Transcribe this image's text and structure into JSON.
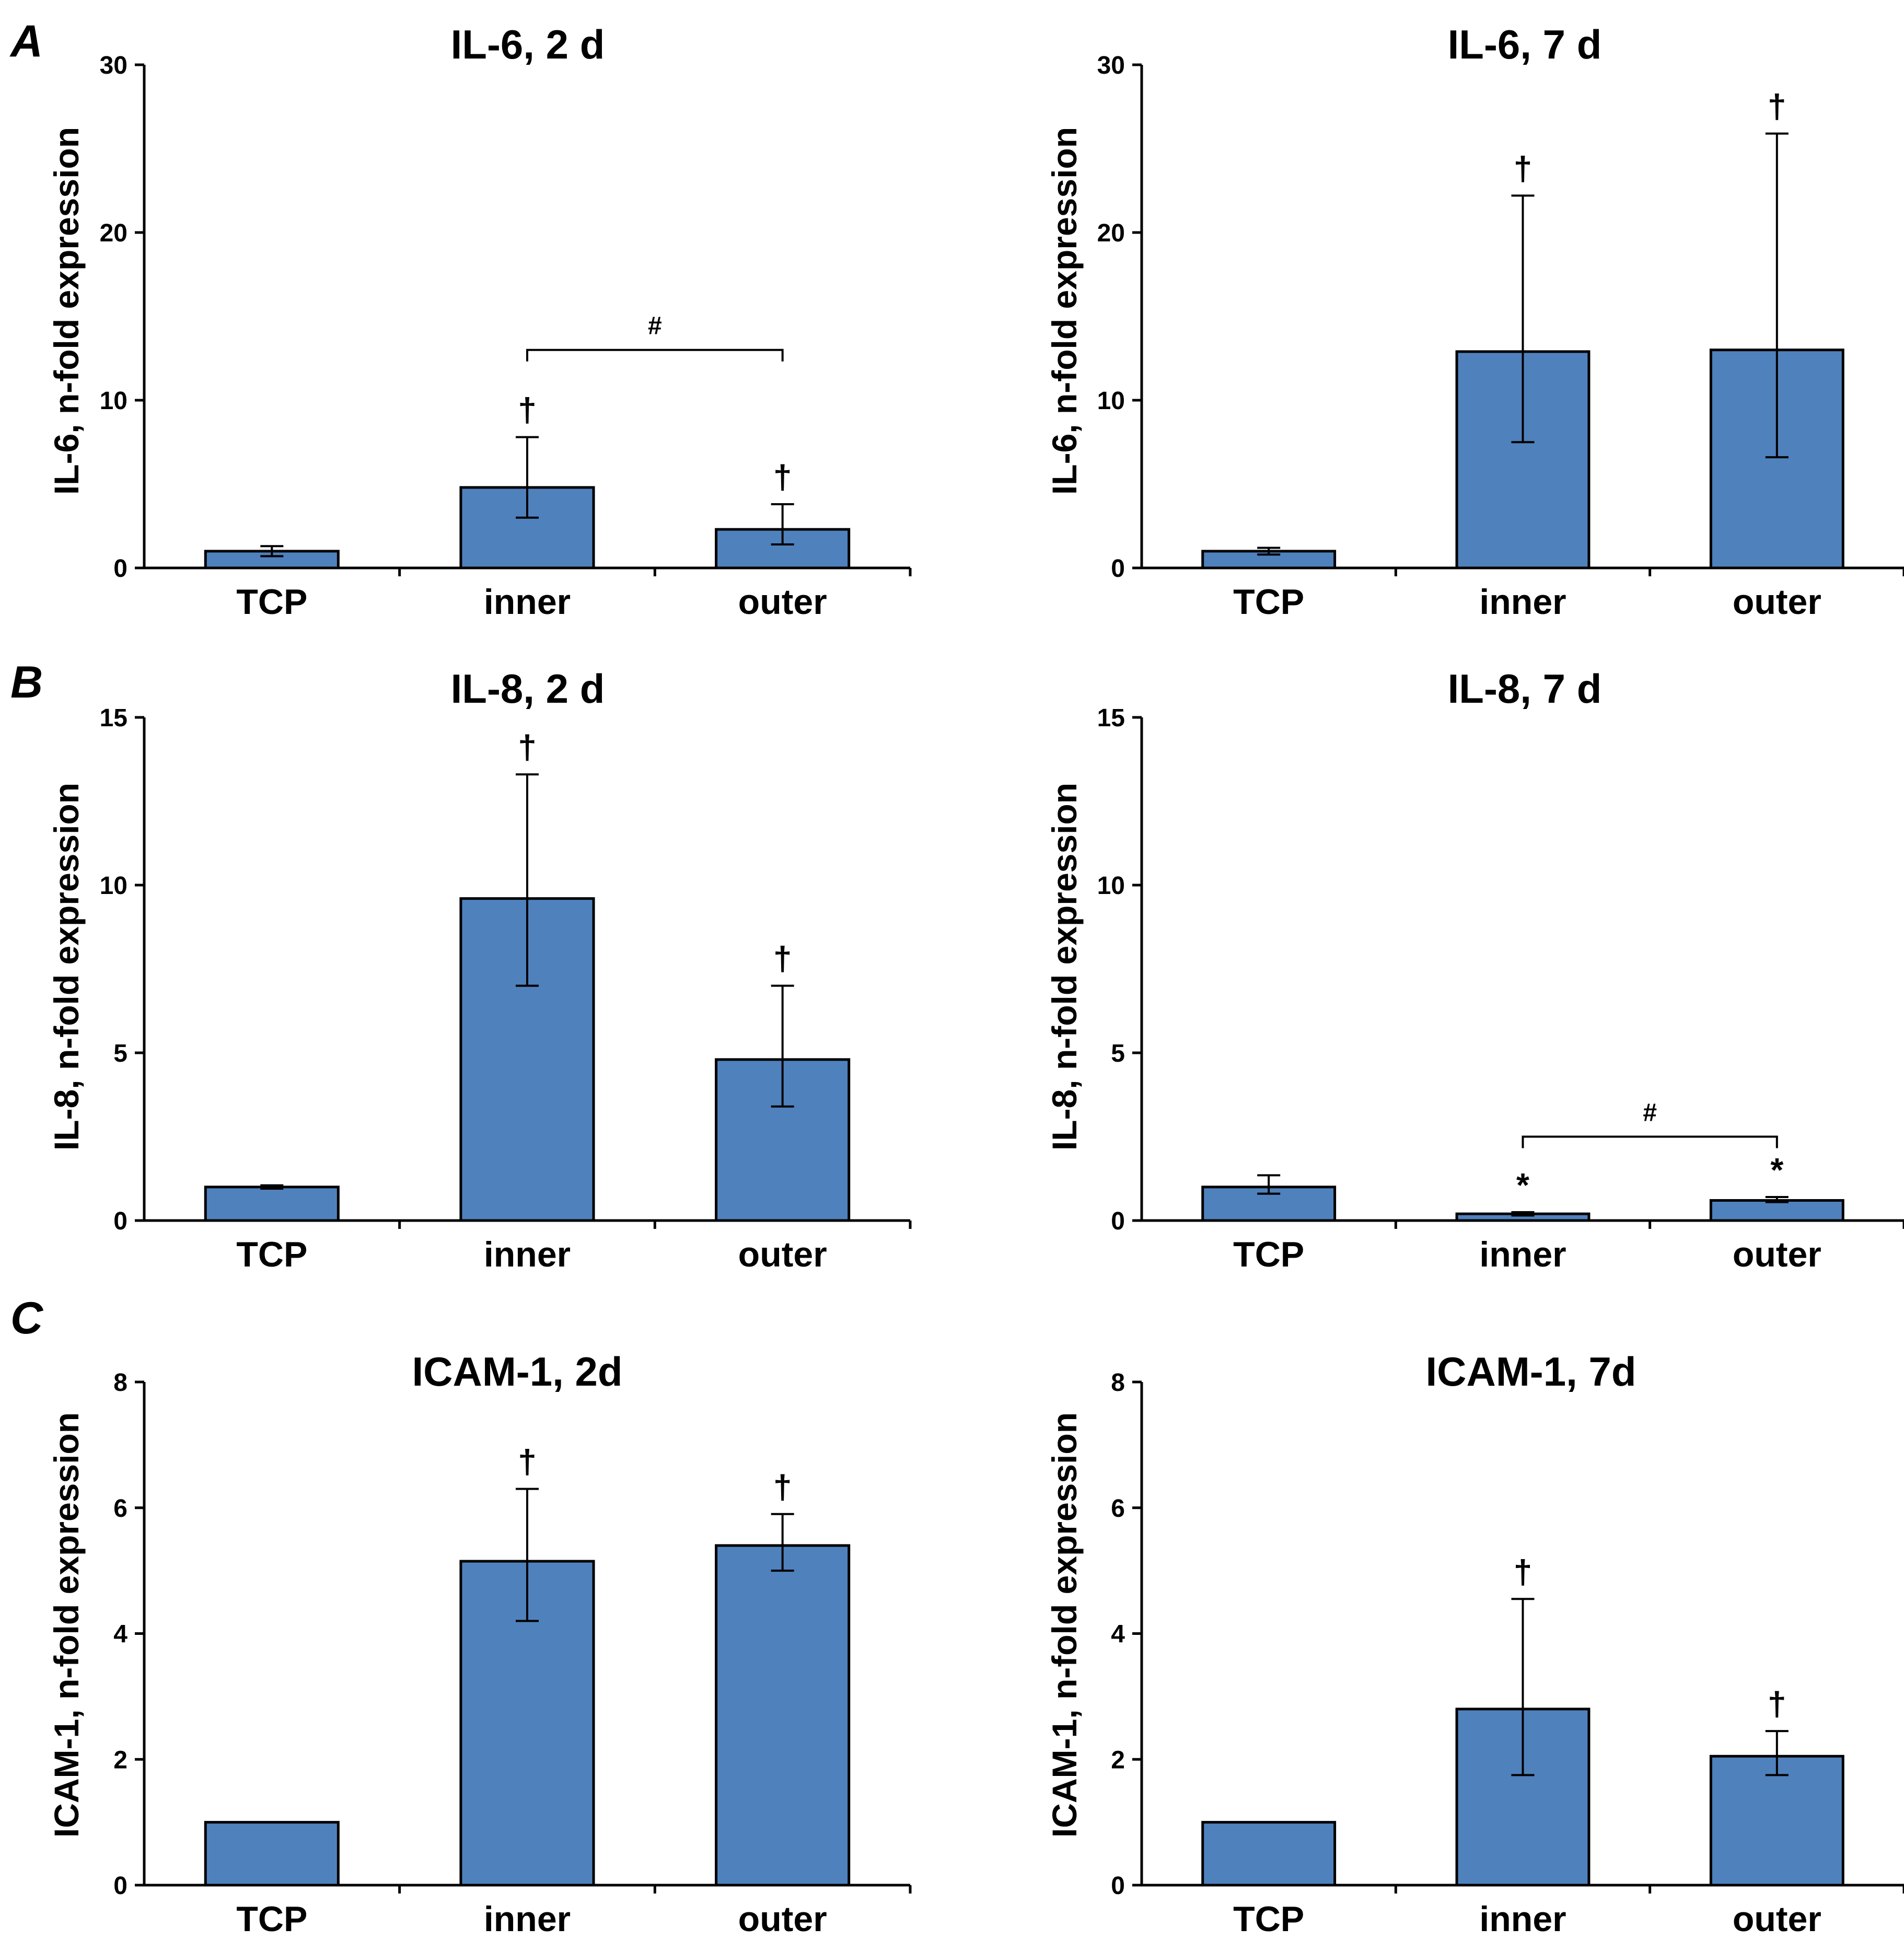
{
  "figure": {
    "panel_letters": [
      "A",
      "B",
      "C"
    ]
  },
  "colors": {
    "bar": "#4f81bd",
    "bar_stroke": "#000000",
    "axis": "#000000",
    "text": "#000000"
  },
  "chart_data": [
    {
      "id": "il6-2d",
      "panel": "A",
      "type": "bar",
      "title": "IL-6, 2 d",
      "ylabel": "IL-6, n-fold expression",
      "xlabel": "",
      "categories": [
        "TCP",
        "inner",
        "outer"
      ],
      "values": [
        1.0,
        4.8,
        2.3
      ],
      "error_low": [
        0.7,
        3.0,
        1.4
      ],
      "error_high": [
        1.3,
        7.8,
        3.8
      ],
      "markers": [
        "",
        "†",
        "†"
      ],
      "bracket": {
        "from": 1,
        "to": 2,
        "label": "#",
        "y": 13.0
      },
      "ylim": [
        0,
        30
      ],
      "yticks": [
        0,
        10,
        20,
        30
      ]
    },
    {
      "id": "il6-7d",
      "panel": "A",
      "type": "bar",
      "title": "IL-6, 7 d",
      "ylabel": "IL-6, n-fold expression",
      "xlabel": "",
      "categories": [
        "TCP",
        "inner",
        "outer"
      ],
      "values": [
        1.0,
        12.9,
        13.0
      ],
      "error_low": [
        0.8,
        7.5,
        6.6
      ],
      "error_high": [
        1.2,
        22.2,
        25.9
      ],
      "markers": [
        "",
        "†",
        "†"
      ],
      "bracket": null,
      "ylim": [
        0,
        30
      ],
      "yticks": [
        0,
        10,
        20,
        30
      ]
    },
    {
      "id": "il8-2d",
      "panel": "B",
      "type": "bar",
      "title": "IL-8, 2 d",
      "ylabel": "IL-8, n-fold expression",
      "xlabel": "",
      "categories": [
        "TCP",
        "inner",
        "outer"
      ],
      "values": [
        1.0,
        9.6,
        4.8
      ],
      "error_low": [
        0.95,
        7.0,
        3.4
      ],
      "error_high": [
        1.05,
        13.3,
        7.0
      ],
      "markers": [
        "",
        "†",
        "†"
      ],
      "bracket": null,
      "ylim": [
        0,
        15
      ],
      "yticks": [
        0,
        5,
        10,
        15
      ]
    },
    {
      "id": "il8-7d",
      "panel": "B",
      "type": "bar",
      "title": "IL-8, 7 d",
      "ylabel": "IL-8, n-fold expression",
      "xlabel": "",
      "categories": [
        "TCP",
        "inner",
        "outer"
      ],
      "values": [
        1.0,
        0.2,
        0.6
      ],
      "error_low": [
        0.8,
        0.15,
        0.55
      ],
      "error_high": [
        1.35,
        0.25,
        0.7
      ],
      "markers": [
        "",
        "*",
        "*"
      ],
      "bracket": {
        "from": 1,
        "to": 2,
        "label": "#",
        "y": 2.5
      },
      "ylim": [
        0,
        15
      ],
      "yticks": [
        0,
        5,
        10,
        15
      ]
    },
    {
      "id": "icam1-2d",
      "panel": "C",
      "type": "bar",
      "title": "ICAM-1, 2d",
      "ylabel": "ICAM-1, n-fold expression",
      "xlabel": "",
      "categories": [
        "TCP",
        "inner",
        "outer"
      ],
      "values": [
        1.0,
        5.15,
        5.4
      ],
      "error_low": [
        1.0,
        4.2,
        5.0
      ],
      "error_high": [
        1.0,
        6.3,
        5.9
      ],
      "markers": [
        "",
        "†",
        "†"
      ],
      "bracket": null,
      "ylim": [
        0,
        8
      ],
      "yticks": [
        0,
        2,
        4,
        6,
        8
      ]
    },
    {
      "id": "icam1-7d",
      "panel": "C",
      "type": "bar",
      "title": "ICAM-1, 7d",
      "ylabel": "ICAM-1, n-fold expression",
      "xlabel": "",
      "categories": [
        "TCP",
        "inner",
        "outer"
      ],
      "values": [
        1.0,
        2.8,
        2.05
      ],
      "error_low": [
        1.0,
        1.75,
        1.75
      ],
      "error_high": [
        1.0,
        4.55,
        2.45
      ],
      "markers": [
        "",
        "†",
        "†"
      ],
      "bracket": null,
      "ylim": [
        0,
        8
      ],
      "yticks": [
        0,
        2,
        4,
        6,
        8
      ]
    }
  ]
}
